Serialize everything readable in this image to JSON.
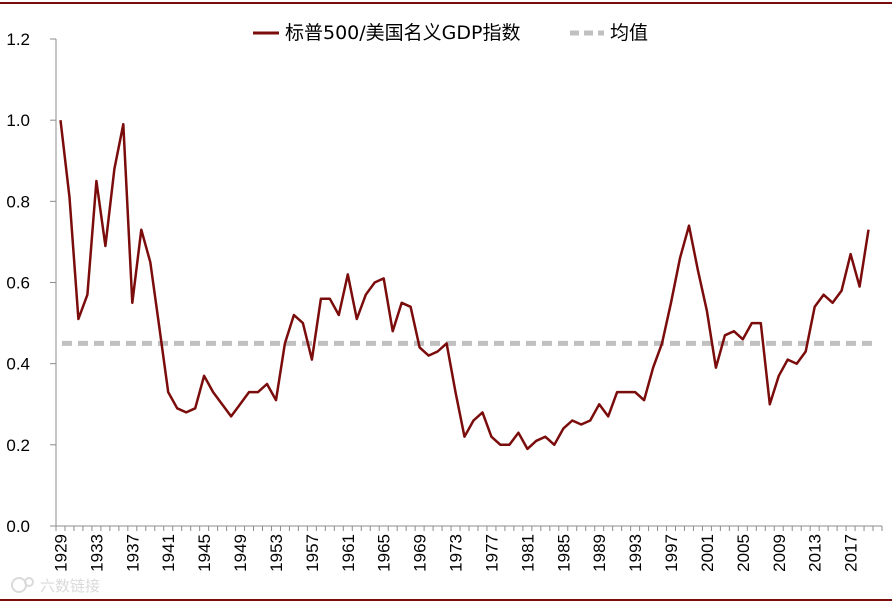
{
  "chart_data": {
    "type": "line",
    "title": "",
    "xlabel": "",
    "ylabel": "",
    "ylim": [
      0.0,
      1.2
    ],
    "yticks": [
      "0.0",
      "0.2",
      "0.4",
      "0.6",
      "0.8",
      "1.0",
      "1.2"
    ],
    "xticks": [
      "1929",
      "1933",
      "1937",
      "1941",
      "1945",
      "1949",
      "1953",
      "1957",
      "1961",
      "1965",
      "1969",
      "1973",
      "1977",
      "1981",
      "1985",
      "1989",
      "1993",
      "1997",
      "2001",
      "2005",
      "2009",
      "2013",
      "2017"
    ],
    "x_start": 1929,
    "x_end": 2020,
    "grid": false,
    "legend_position": "top",
    "series": [
      {
        "name": "标普500/美国名义GDP指数",
        "color": "#7b0c0c",
        "style": "solid",
        "x": [
          1929,
          1930,
          1931,
          1932,
          1933,
          1934,
          1935,
          1936,
          1937,
          1938,
          1939,
          1940,
          1941,
          1942,
          1943,
          1944,
          1945,
          1946,
          1947,
          1948,
          1949,
          1950,
          1951,
          1952,
          1953,
          1954,
          1955,
          1956,
          1957,
          1958,
          1959,
          1960,
          1961,
          1962,
          1963,
          1964,
          1965,
          1966,
          1967,
          1968,
          1969,
          1970,
          1971,
          1972,
          1973,
          1974,
          1975,
          1976,
          1977,
          1978,
          1979,
          1980,
          1981,
          1982,
          1983,
          1984,
          1985,
          1986,
          1987,
          1988,
          1989,
          1990,
          1991,
          1992,
          1993,
          1994,
          1995,
          1996,
          1997,
          1998,
          1999,
          2000,
          2001,
          2002,
          2003,
          2004,
          2005,
          2006,
          2007,
          2008,
          2009,
          2010,
          2011,
          2012,
          2013,
          2014,
          2015,
          2016,
          2017,
          2018,
          2019
        ],
        "values": [
          1.0,
          0.81,
          0.51,
          0.57,
          0.85,
          0.69,
          0.88,
          0.99,
          0.55,
          0.73,
          0.65,
          0.49,
          0.33,
          0.29,
          0.28,
          0.29,
          0.37,
          0.33,
          0.3,
          0.27,
          0.3,
          0.33,
          0.33,
          0.35,
          0.31,
          0.45,
          0.52,
          0.5,
          0.41,
          0.56,
          0.56,
          0.52,
          0.62,
          0.51,
          0.57,
          0.6,
          0.61,
          0.48,
          0.55,
          0.54,
          0.44,
          0.42,
          0.43,
          0.45,
          0.33,
          0.22,
          0.26,
          0.28,
          0.22,
          0.2,
          0.2,
          0.23,
          0.19,
          0.21,
          0.22,
          0.2,
          0.24,
          0.26,
          0.25,
          0.26,
          0.3,
          0.27,
          0.33,
          0.33,
          0.33,
          0.31,
          0.39,
          0.45,
          0.55,
          0.66,
          0.74,
          0.63,
          0.53,
          0.39,
          0.47,
          0.48,
          0.46,
          0.5,
          0.5,
          0.3,
          0.37,
          0.41,
          0.4,
          0.43,
          0.54,
          0.57,
          0.55,
          0.58,
          0.67,
          0.59,
          0.73
        ]
      },
      {
        "name": "均值",
        "color": "#c0c0c0",
        "style": "dashed",
        "x": [
          1929,
          2019
        ],
        "values": [
          0.45,
          0.45
        ]
      }
    ]
  },
  "watermark": "六数链接"
}
